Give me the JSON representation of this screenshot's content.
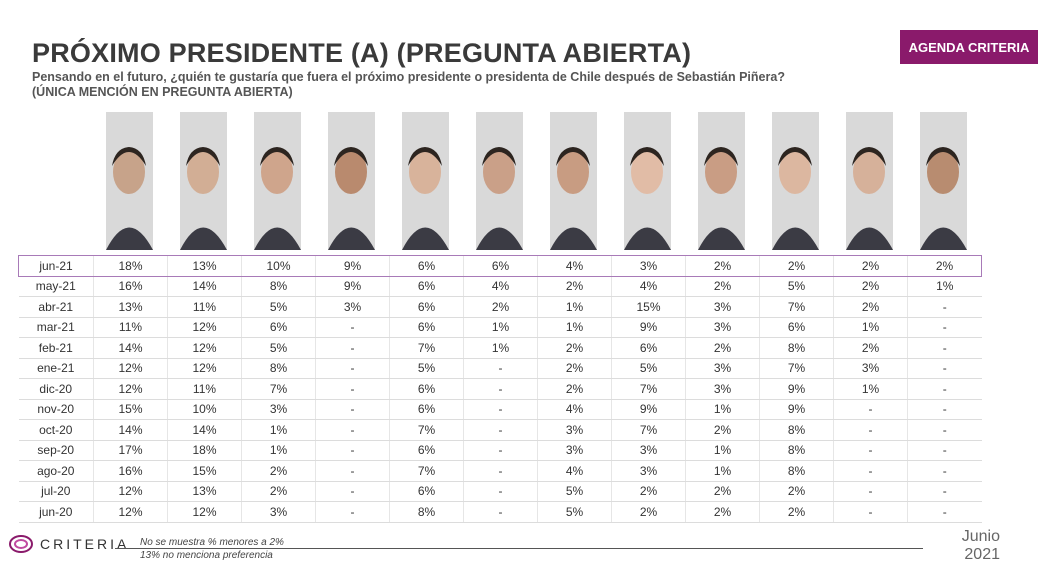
{
  "header": {
    "title": "PRÓXIMO PRESIDENTE (A) (PREGUNTA ABIERTA)",
    "subtitle": "Pensando en el futuro, ¿quién te gustaría que fuera el próximo presidente o presidenta de Chile después de Sebastián Piñera?",
    "subtitle2": "(ÚNICA MENCIÓN EN PREGUNTA ABIERTA)",
    "badge": "AGENDA CRITERIA"
  },
  "table": {
    "rows": [
      [
        "jun-21",
        "18%",
        "13%",
        "10%",
        "9%",
        "6%",
        "6%",
        "4%",
        "3%",
        "2%",
        "2%",
        "2%",
        "2%"
      ],
      [
        "may-21",
        "16%",
        "14%",
        "8%",
        "9%",
        "6%",
        "4%",
        "2%",
        "4%",
        "2%",
        "5%",
        "2%",
        "1%"
      ],
      [
        "abr-21",
        "13%",
        "11%",
        "5%",
        "3%",
        "6%",
        "2%",
        "1%",
        "15%",
        "3%",
        "7%",
        "2%",
        "-"
      ],
      [
        "mar-21",
        "11%",
        "12%",
        "6%",
        "-",
        "6%",
        "1%",
        "1%",
        "9%",
        "3%",
        "6%",
        "1%",
        "-"
      ],
      [
        "feb-21",
        "14%",
        "12%",
        "5%",
        "-",
        "7%",
        "1%",
        "2%",
        "6%",
        "2%",
        "8%",
        "2%",
        "-"
      ],
      [
        "ene-21",
        "12%",
        "12%",
        "8%",
        "-",
        "5%",
        "-",
        "2%",
        "5%",
        "3%",
        "7%",
        "3%",
        "-"
      ],
      [
        "dic-20",
        "12%",
        "11%",
        "7%",
        "-",
        "6%",
        "-",
        "2%",
        "7%",
        "3%",
        "9%",
        "1%",
        "-"
      ],
      [
        "nov-20",
        "15%",
        "10%",
        "3%",
        "-",
        "6%",
        "-",
        "4%",
        "9%",
        "1%",
        "9%",
        "-",
        "-"
      ],
      [
        "oct-20",
        "14%",
        "14%",
        "1%",
        "-",
        "7%",
        "-",
        "3%",
        "7%",
        "2%",
        "8%",
        "-",
        "-"
      ],
      [
        "sep-20",
        "17%",
        "18%",
        "1%",
        "-",
        "6%",
        "-",
        "3%",
        "3%",
        "1%",
        "8%",
        "-",
        "-"
      ],
      [
        "ago-20",
        "16%",
        "15%",
        "2%",
        "-",
        "7%",
        "-",
        "4%",
        "3%",
        "1%",
        "8%",
        "-",
        "-"
      ],
      [
        "jul-20",
        "12%",
        "13%",
        "2%",
        "-",
        "6%",
        "-",
        "5%",
        "2%",
        "2%",
        "2%",
        "-",
        "-"
      ],
      [
        "jun-20",
        "12%",
        "12%",
        "3%",
        "-",
        "8%",
        "-",
        "5%",
        "2%",
        "2%",
        "2%",
        "-",
        "-"
      ]
    ]
  },
  "footer": {
    "logo": "CRITERIA",
    "note1": "No se muestra % menores a 2%",
    "note2": "13% no menciona preferencia",
    "date_month": "Junio",
    "date_year": "2021"
  }
}
